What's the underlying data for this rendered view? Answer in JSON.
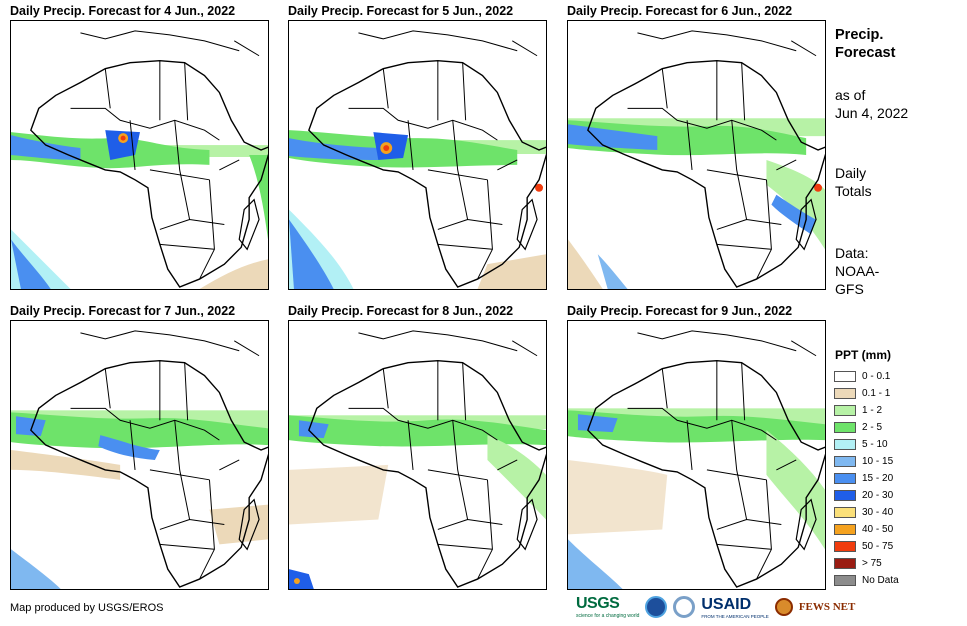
{
  "panels": [
    {
      "title": "Daily Precip. Forecast for 4 Jun., 2022"
    },
    {
      "title": "Daily Precip. Forecast for 5 Jun., 2022"
    },
    {
      "title": "Daily Precip. Forecast for 6 Jun., 2022"
    },
    {
      "title": "Daily Precip. Forecast for 7 Jun., 2022"
    },
    {
      "title": "Daily Precip. Forecast for 8 Jun., 2022"
    },
    {
      "title": "Daily Precip. Forecast for 9 Jun., 2022"
    }
  ],
  "side": {
    "heading_line1": "Precip.",
    "heading_line2": "Forecast",
    "asof_line1": "as of",
    "asof_line2": "Jun 4, 2022",
    "totals_line1": "Daily",
    "totals_line2": "Totals",
    "data_line1": "Data:",
    "data_line2": "NOAA-",
    "data_line3": "GFS"
  },
  "legend": {
    "title": "PPT (mm)",
    "items": [
      {
        "label": "0 - 0.1",
        "color": "#ffffff"
      },
      {
        "label": "0.1 - 1",
        "color": "#ecd9b9"
      },
      {
        "label": "1 - 2",
        "color": "#b7f2a6"
      },
      {
        "label": "2 - 5",
        "color": "#6ee36a"
      },
      {
        "label": "5 - 10",
        "color": "#b2f0f5"
      },
      {
        "label": "10 - 15",
        "color": "#7fb8f0"
      },
      {
        "label": "15 - 20",
        "color": "#4a8ff0"
      },
      {
        "label": "20 - 30",
        "color": "#1f5ee8"
      },
      {
        "label": "30 - 40",
        "color": "#fbe07a"
      },
      {
        "label": "40 - 50",
        "color": "#f5a21f"
      },
      {
        "label": "50 - 75",
        "color": "#f03c0e"
      },
      {
        "label": "> 75",
        "color": "#9a1c12"
      },
      {
        "label": "No Data",
        "color": "#8c8c8c"
      }
    ]
  },
  "footer": {
    "credit": "Map produced by USGS/EROS",
    "logos": {
      "usgs": "USGS",
      "usgs_tagline": "science for a changing world",
      "usaid": "USAID",
      "usaid_tagline": "FROM THE AMERICAN PEOPLE",
      "fews": "FEWS NET"
    }
  }
}
